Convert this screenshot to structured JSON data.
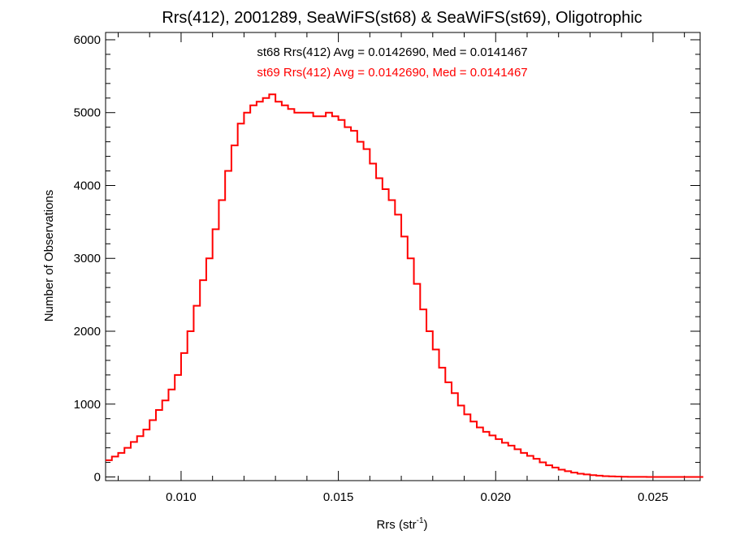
{
  "chart_data": {
    "type": "line",
    "title": "Rrs(412), 2001289, SeaWiFS(st68) & SeaWiFS(st69), Oligotrophic",
    "xlabel_main": "Rrs (str",
    "xlabel_sup": "-1",
    "xlabel_close": ")",
    "ylabel": "Number of Observations",
    "xlim": [
      0.0076,
      0.0265
    ],
    "ylim": [
      -50,
      6100
    ],
    "x_ticks": [
      0.01,
      0.015,
      0.02,
      0.025
    ],
    "x_tick_labels": [
      "0.010",
      "0.015",
      "0.020",
      "0.025"
    ],
    "y_ticks": [
      0,
      1000,
      2000,
      3000,
      4000,
      5000,
      6000
    ],
    "y_tick_labels": [
      "0",
      "1000",
      "2000",
      "3000",
      "4000",
      "5000",
      "6000"
    ],
    "grid": false,
    "step": "histogram",
    "annotations": [
      {
        "text": "st68 Rrs(412) Avg = 0.0142690, Med = 0.0141467",
        "color": "#000000"
      },
      {
        "text": "st69 Rrs(412) Avg = 0.0142690, Med = 0.0141467",
        "color": "#ff0000"
      }
    ],
    "series": [
      {
        "color": "#ff0000",
        "x": [
          0.0076,
          0.0078,
          0.008,
          0.0082,
          0.0084,
          0.0086,
          0.0088,
          0.009,
          0.0092,
          0.0094,
          0.0096,
          0.0098,
          0.01,
          0.0102,
          0.0104,
          0.0106,
          0.0108,
          0.011,
          0.0112,
          0.0114,
          0.0116,
          0.0118,
          0.012,
          0.0122,
          0.0124,
          0.0126,
          0.0128,
          0.013,
          0.0132,
          0.0134,
          0.0136,
          0.0138,
          0.014,
          0.0142,
          0.0144,
          0.0146,
          0.0148,
          0.015,
          0.0152,
          0.0154,
          0.0156,
          0.0158,
          0.016,
          0.0162,
          0.0164,
          0.0166,
          0.0168,
          0.017,
          0.0172,
          0.0174,
          0.0176,
          0.0178,
          0.018,
          0.0182,
          0.0184,
          0.0186,
          0.0188,
          0.019,
          0.0192,
          0.0194,
          0.0196,
          0.0198,
          0.02,
          0.0202,
          0.0204,
          0.0206,
          0.0208,
          0.021,
          0.0212,
          0.0214,
          0.0216,
          0.0218,
          0.022,
          0.0222,
          0.0224,
          0.0226,
          0.0228,
          0.023,
          0.0232,
          0.0234,
          0.0236,
          0.0238,
          0.024,
          0.0242,
          0.0244,
          0.0246,
          0.0248,
          0.025,
          0.0252,
          0.0254,
          0.0256,
          0.0258,
          0.026,
          0.0262,
          0.0264
        ],
        "values": [
          230,
          280,
          330,
          400,
          480,
          560,
          650,
          780,
          920,
          1050,
          1200,
          1400,
          1700,
          2000,
          2350,
          2700,
          3000,
          3400,
          3800,
          4200,
          4550,
          4850,
          5000,
          5100,
          5150,
          5200,
          5250,
          5150,
          5100,
          5050,
          5000,
          5000,
          5000,
          4950,
          4950,
          5000,
          4950,
          4900,
          4800,
          4750,
          4600,
          4500,
          4300,
          4100,
          3950,
          3800,
          3600,
          3300,
          3000,
          2650,
          2300,
          2000,
          1750,
          1500,
          1300,
          1150,
          980,
          860,
          760,
          680,
          620,
          570,
          520,
          470,
          430,
          380,
          330,
          290,
          250,
          200,
          160,
          130,
          100,
          80,
          60,
          45,
          35,
          25,
          18,
          12,
          8,
          5,
          3,
          2,
          1,
          1,
          0,
          0,
          0,
          0,
          0,
          0,
          0,
          0,
          0
        ]
      }
    ]
  }
}
